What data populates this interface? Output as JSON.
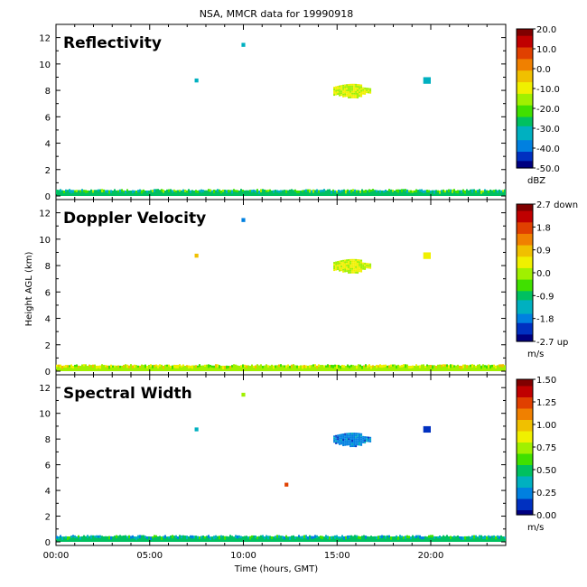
{
  "figure_title": "NSA, MMCR data for 19990918",
  "chart_data": [
    {
      "type": "heatmap",
      "title": "Reflectivity",
      "xlabel": "Time (hours, GMT)",
      "ylabel": "Height AGL (km)",
      "x_ticks": [
        "00:00",
        "05:00",
        "10:00",
        "15:00",
        "20:00"
      ],
      "x_tick_values": [
        0,
        5,
        10,
        15,
        20
      ],
      "xlim": [
        0,
        24
      ],
      "y_ticks": [
        "0",
        "2",
        "4",
        "6",
        "8",
        "10",
        "12"
      ],
      "y_tick_values": [
        0,
        2,
        4,
        6,
        8,
        10,
        12
      ],
      "ylim": [
        0,
        13
      ],
      "colorbar": {
        "ticks": [
          "20.0",
          "10.0",
          "0.0",
          "-10.0",
          "-20.0",
          "-30.0",
          "-40.0",
          "-50.0"
        ],
        "tick_values": [
          20,
          10,
          0,
          -10,
          -20,
          -30,
          -40,
          -50
        ],
        "range": [
          -50,
          20
        ],
        "unit": "dBZ"
      },
      "features": [
        {
          "name": "surface-clutter",
          "x_range": [
            0,
            24
          ],
          "y_range": [
            0,
            0.4
          ],
          "value": -25
        },
        {
          "name": "cloud",
          "x_range": [
            14.8,
            16.8
          ],
          "y_range": [
            7.5,
            8.5
          ],
          "value": -12
        },
        {
          "name": "small-echo",
          "x_range": [
            19.6,
            20.0
          ],
          "y_range": [
            8.5,
            9.0
          ],
          "value": -35
        },
        {
          "name": "small-echo",
          "x_range": [
            7.4,
            7.6
          ],
          "y_range": [
            8.6,
            8.9
          ],
          "value": -30
        },
        {
          "name": "small-echo",
          "x_range": [
            9.9,
            10.1
          ],
          "y_range": [
            11.3,
            11.6
          ],
          "value": -35
        }
      ]
    },
    {
      "type": "heatmap",
      "title": "Doppler Velocity",
      "xlabel": "Time (hours, GMT)",
      "ylabel": "Height AGL (km)",
      "x_ticks": [
        "00:00",
        "05:00",
        "10:00",
        "15:00",
        "20:00"
      ],
      "x_tick_values": [
        0,
        5,
        10,
        15,
        20
      ],
      "xlim": [
        0,
        24
      ],
      "y_ticks": [
        "0",
        "2",
        "4",
        "6",
        "8",
        "10",
        "12"
      ],
      "y_tick_values": [
        0,
        2,
        4,
        6,
        8,
        10,
        12
      ],
      "ylim": [
        0,
        13
      ],
      "colorbar": {
        "ticks": [
          "2.7 down",
          "1.8",
          "0.9",
          "0.0",
          "-0.9",
          "-1.8",
          "-2.7 up"
        ],
        "tick_values": [
          2.7,
          1.8,
          0.9,
          0.0,
          -0.9,
          -1.8,
          -2.7
        ],
        "range": [
          -2.7,
          2.7
        ],
        "unit": "m/s"
      },
      "features": [
        {
          "name": "surface-clutter",
          "x_range": [
            0,
            24
          ],
          "y_range": [
            0,
            0.4
          ],
          "value": 0.2
        },
        {
          "name": "cloud",
          "x_range": [
            14.8,
            16.8
          ],
          "y_range": [
            7.5,
            8.5
          ],
          "value": 0.3
        },
        {
          "name": "small-echo",
          "x_range": [
            19.6,
            20.0
          ],
          "y_range": [
            8.5,
            9.0
          ],
          "value": 0.6
        },
        {
          "name": "small-echo",
          "x_range": [
            7.4,
            7.6
          ],
          "y_range": [
            8.6,
            8.9
          ],
          "value": 0.9
        },
        {
          "name": "small-echo",
          "x_range": [
            9.9,
            10.1
          ],
          "y_range": [
            11.3,
            11.6
          ],
          "value": -1.8
        }
      ]
    },
    {
      "type": "heatmap",
      "title": "Spectral Width",
      "xlabel": "Time (hours, GMT)",
      "ylabel": "Height AGL (km)",
      "x_ticks": [
        "00:00",
        "05:00",
        "10:00",
        "15:00",
        "20:00"
      ],
      "x_tick_values": [
        0,
        5,
        10,
        15,
        20
      ],
      "xlim": [
        0,
        24
      ],
      "y_ticks": [
        "0",
        "2",
        "4",
        "6",
        "8",
        "10",
        "12"
      ],
      "y_tick_values": [
        0,
        2,
        4,
        6,
        8,
        10,
        12
      ],
      "ylim": [
        0,
        13
      ],
      "colorbar": {
        "ticks": [
          "1.50",
          "1.25",
          "1.00",
          "0.75",
          "0.50",
          "0.25",
          "0.00"
        ],
        "tick_values": [
          1.5,
          1.25,
          1.0,
          0.75,
          0.5,
          0.25,
          0.0
        ],
        "range": [
          0,
          1.5
        ],
        "unit": "m/s"
      },
      "features": [
        {
          "name": "surface-clutter",
          "x_range": [
            0,
            24
          ],
          "y_range": [
            0,
            0.4
          ],
          "value": 0.45
        },
        {
          "name": "cloud",
          "x_range": [
            14.8,
            16.8
          ],
          "y_range": [
            7.5,
            8.5
          ],
          "value": 0.25
        },
        {
          "name": "small-echo",
          "x_range": [
            19.6,
            20.0
          ],
          "y_range": [
            8.5,
            9.0
          ],
          "value": 0.15
        },
        {
          "name": "small-echo",
          "x_range": [
            7.4,
            7.6
          ],
          "y_range": [
            8.6,
            8.9
          ],
          "value": 0.4
        },
        {
          "name": "small-echo",
          "x_range": [
            9.9,
            10.1
          ],
          "y_range": [
            11.3,
            11.6
          ],
          "value": 0.8
        },
        {
          "name": "small-echo",
          "x_range": [
            12.2,
            12.4
          ],
          "y_range": [
            4.3,
            4.6
          ],
          "value": 1.25
        }
      ]
    }
  ],
  "colormap": [
    "#000080",
    "#0030c0",
    "#0080e0",
    "#00b0c0",
    "#00c060",
    "#40e000",
    "#a0f000",
    "#f0f000",
    "#f0c000",
    "#f08000",
    "#e04000",
    "#c00000",
    "#800000"
  ]
}
